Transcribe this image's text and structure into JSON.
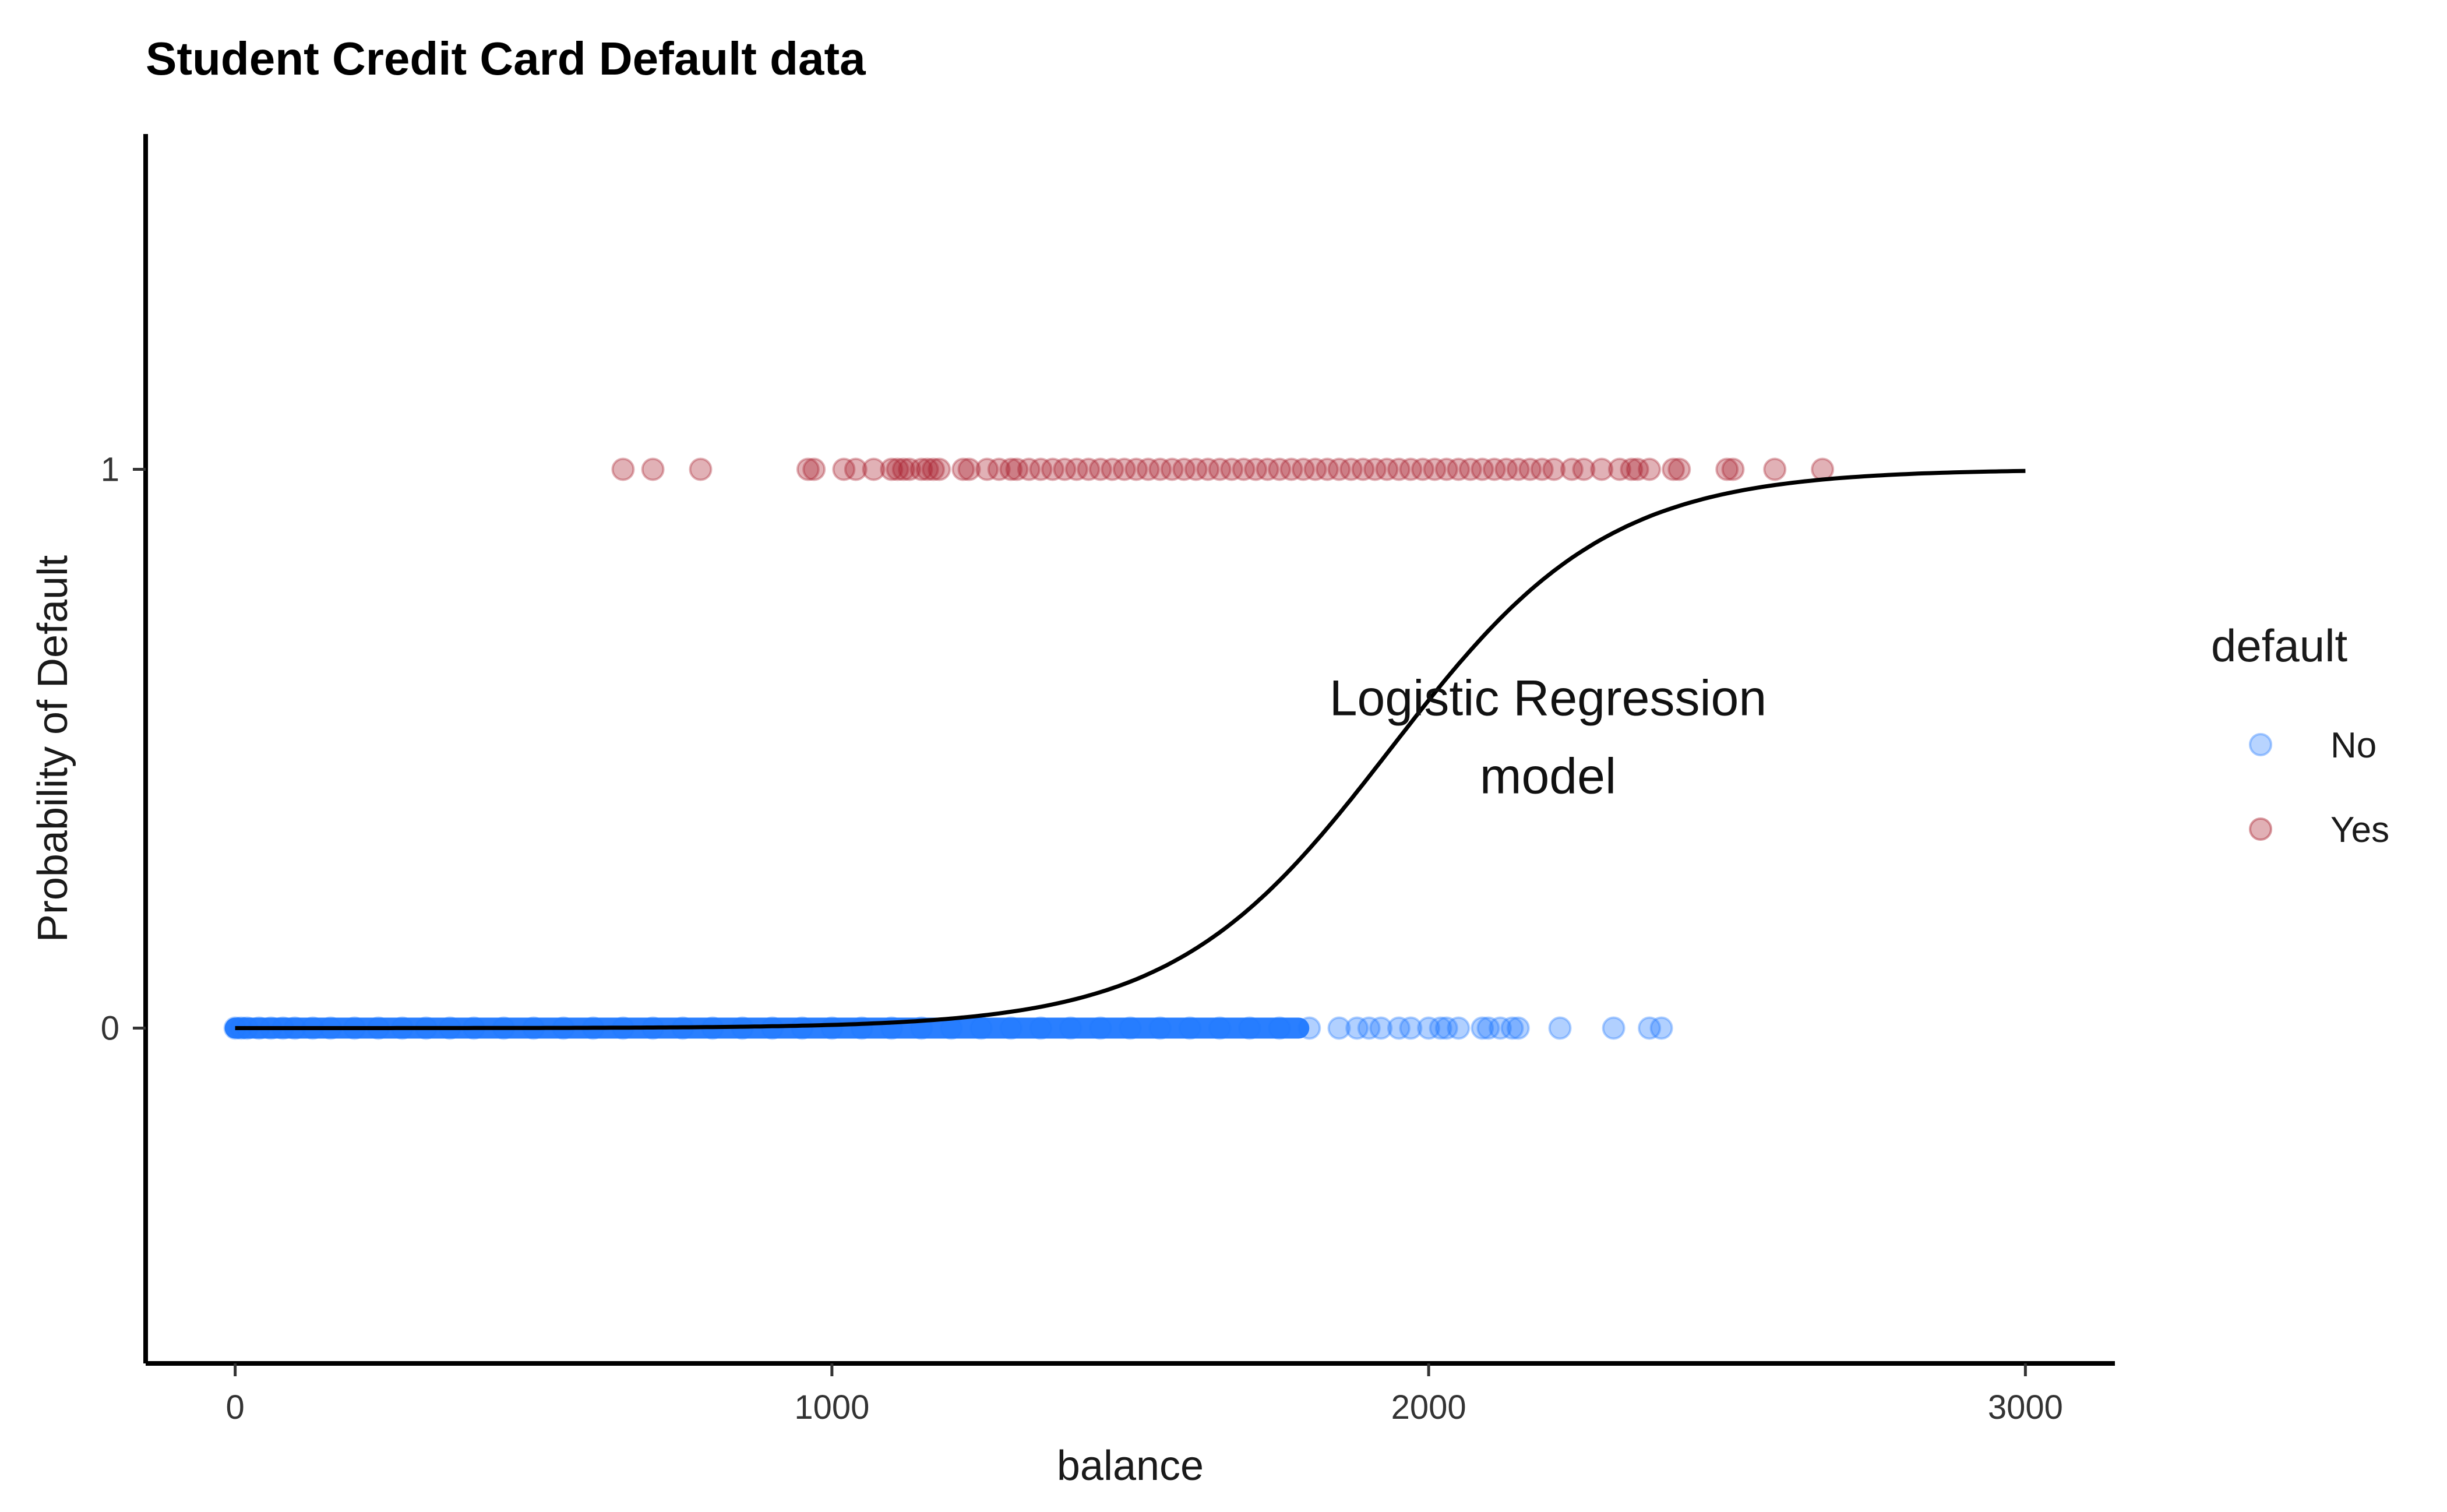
{
  "chart_data": {
    "type": "scatter",
    "title": "Student Credit Card Default data",
    "xlabel": "balance",
    "ylabel": "Probability of Default",
    "xlim": [
      -150,
      3150
    ],
    "ylim": [
      -0.6,
      1.6
    ],
    "x_ticks": [
      0,
      1000,
      2000,
      3000
    ],
    "y_ticks": [
      0,
      1
    ],
    "grid": false,
    "legend": {
      "title": "default",
      "position": "right",
      "entries": [
        {
          "label": "No",
          "color": "#4d94ff"
        },
        {
          "label": "Yes",
          "color": "#b33a45"
        }
      ]
    },
    "series": [
      {
        "name": "No",
        "y": 0,
        "color": "#1f78ff",
        "x": [
          0,
          10,
          20,
          40,
          60,
          80,
          100,
          130,
          160,
          200,
          240,
          280,
          320,
          360,
          400,
          450,
          500,
          550,
          600,
          650,
          700,
          750,
          800,
          850,
          900,
          950,
          1000,
          1050,
          1100,
          1150,
          1200,
          1250,
          1300,
          1350,
          1400,
          1450,
          1500,
          1550,
          1600,
          1650,
          1700,
          1750,
          1800,
          1850,
          1880,
          1900,
          1920,
          1950,
          1970,
          2000,
          2020,
          2030,
          2050,
          2090,
          2100,
          2120,
          2140,
          2150,
          2220,
          2310,
          2370,
          2390
        ]
      },
      {
        "name": "Yes",
        "y": 1,
        "color": "#a8202e",
        "x": [
          650,
          700,
          780,
          960,
          970,
          1020,
          1040,
          1070,
          1100,
          1110,
          1120,
          1130,
          1150,
          1160,
          1170,
          1180,
          1220,
          1230,
          1260,
          1280,
          1300,
          1310,
          1330,
          1350,
          1370,
          1390,
          1410,
          1430,
          1450,
          1470,
          1490,
          1510,
          1530,
          1550,
          1570,
          1590,
          1610,
          1630,
          1650,
          1670,
          1690,
          1710,
          1730,
          1750,
          1770,
          1790,
          1810,
          1830,
          1850,
          1870,
          1890,
          1910,
          1930,
          1950,
          1970,
          1990,
          2010,
          2030,
          2050,
          2070,
          2090,
          2110,
          2130,
          2150,
          2170,
          2190,
          2210,
          2240,
          2260,
          2290,
          2320,
          2340,
          2350,
          2370,
          2410,
          2420,
          2500,
          2510,
          2580,
          2660
        ]
      },
      {
        "name": "",
        "type": "line",
        "color": "#000000",
        "model": "logistic",
        "intercept": -10.65,
        "slope": 0.0055,
        "x_range": [
          0,
          3000
        ]
      }
    ],
    "annotations": [
      {
        "text": "Logistic Regression",
        "x": 2200,
        "y": 0.56
      },
      {
        "text": "model",
        "x": 2200,
        "y": 0.42
      }
    ]
  }
}
